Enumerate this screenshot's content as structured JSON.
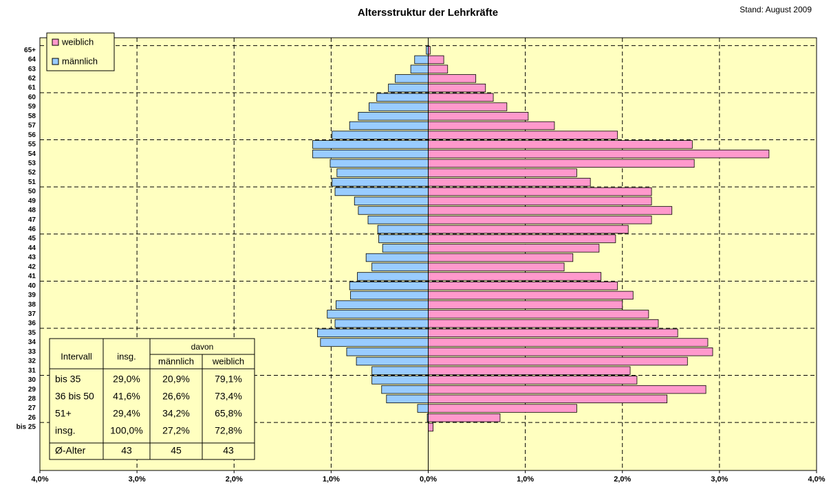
{
  "chart_data": {
    "type": "pyramid",
    "title": "Altersstruktur der Lehrkräfte",
    "subtitle": "Stand: August 2009",
    "categories": [
      "bis 25",
      "26",
      "27",
      "28",
      "29",
      "30",
      "31",
      "32",
      "33",
      "34",
      "35",
      "36",
      "37",
      "38",
      "39",
      "40",
      "41",
      "42",
      "43",
      "44",
      "45",
      "46",
      "47",
      "48",
      "49",
      "50",
      "51",
      "52",
      "53",
      "54",
      "55",
      "56",
      "57",
      "58",
      "59",
      "60",
      "61",
      "62",
      "63",
      "64",
      "65+"
    ],
    "series": [
      {
        "name": "weiblich",
        "color": "#ff99cc",
        "values": [
          0.05,
          0.74,
          1.53,
          2.46,
          2.86,
          2.15,
          2.08,
          2.67,
          2.93,
          2.88,
          2.57,
          2.37,
          2.27,
          2.0,
          2.11,
          1.95,
          1.78,
          1.4,
          1.49,
          1.76,
          1.93,
          2.06,
          2.3,
          2.51,
          2.3,
          2.3,
          1.67,
          1.53,
          2.74,
          3.51,
          2.72,
          1.95,
          1.3,
          1.03,
          0.81,
          0.67,
          0.59,
          0.49,
          0.2,
          0.16,
          0.02
        ]
      },
      {
        "name": "männlich",
        "color": "#99ccff",
        "values": [
          0,
          -0.01,
          -0.11,
          -0.43,
          -0.48,
          -0.58,
          -0.58,
          -0.74,
          -0.84,
          -1.11,
          -1.14,
          -0.96,
          -1.04,
          -0.95,
          -0.8,
          -0.81,
          -0.73,
          -0.58,
          -0.64,
          -0.47,
          -0.51,
          -0.52,
          -0.62,
          -0.72,
          -0.76,
          -0.96,
          -0.99,
          -0.94,
          -1.01,
          -1.19,
          -1.19,
          -0.99,
          -0.81,
          -0.72,
          -0.61,
          -0.53,
          -0.41,
          -0.34,
          -0.18,
          -0.14,
          -0.02
        ]
      }
    ],
    "xlim": [
      -4,
      4
    ],
    "xticks": [
      {
        "value": -4,
        "label": "4,0%"
      },
      {
        "value": -3,
        "label": "3,0%"
      },
      {
        "value": -2,
        "label": "2,0%"
      },
      {
        "value": -1,
        "label": "1,0%"
      },
      {
        "value": 0,
        "label": "0,0%"
      },
      {
        "value": 1,
        "label": "1,0%"
      },
      {
        "value": 2,
        "label": "2,0%"
      },
      {
        "value": 3,
        "label": "3,0%"
      },
      {
        "value": 4,
        "label": "4,0%"
      }
    ],
    "grid": true
  },
  "table": {
    "header": [
      "Intervall",
      "insg.",
      "davon",
      "männlich",
      "weiblich"
    ],
    "rows": [
      [
        "bis 35",
        "29,0%",
        "20,9%",
        "79,1%"
      ],
      [
        "36 bis 50",
        "41,6%",
        "26,6%",
        "73,4%"
      ],
      [
        "51+",
        "29,4%",
        "34,2%",
        "65,8%"
      ],
      [
        "insg.",
        "100,0%",
        "27,2%",
        "72,8%"
      ]
    ],
    "footer": [
      "Ø-Alter",
      "43",
      "45",
      "43"
    ]
  }
}
